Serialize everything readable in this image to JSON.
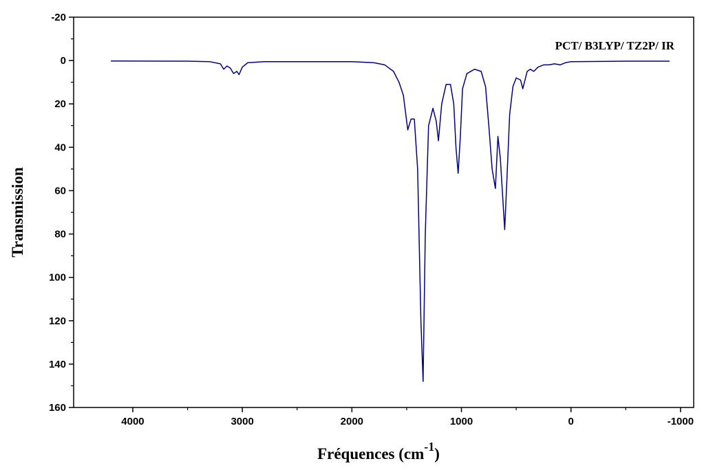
{
  "chart_data": {
    "type": "line",
    "annotation": "PCT/ B3LYP/ TZ2P/ IR",
    "x_label": "Fréquences (cm",
    "x_label_sup": "-1",
    "x_label_end": ")",
    "y_label": "Transmission",
    "xlim": [
      4540,
      -1120
    ],
    "ylim": [
      160,
      -20
    ],
    "xticks": [
      4000,
      3000,
      2000,
      1000,
      0,
      -1000
    ],
    "yticks": [
      -20,
      0,
      20,
      40,
      60,
      80,
      100,
      120,
      140,
      160
    ],
    "x": [
      4200,
      3500,
      3300,
      3200,
      3170,
      3140,
      3110,
      3080,
      3050,
      3030,
      3000,
      2950,
      2800,
      2000,
      1800,
      1700,
      1620,
      1570,
      1530,
      1490,
      1460,
      1430,
      1400,
      1370,
      1350,
      1330,
      1300,
      1260,
      1230,
      1210,
      1180,
      1140,
      1100,
      1070,
      1050,
      1030,
      1010,
      990,
      950,
      880,
      820,
      780,
      750,
      720,
      690,
      667,
      645,
      605,
      585,
      560,
      530,
      500,
      460,
      440,
      420,
      400,
      370,
      340,
      300,
      250,
      200,
      150,
      100,
      50,
      0,
      -500,
      -900
    ],
    "series": [
      {
        "name": "IR",
        "color": "#000080",
        "values": [
          0.2,
          0.3,
          0.5,
          1.5,
          4,
          2.5,
          3.5,
          6,
          5,
          6.5,
          3,
          1,
          0.5,
          0.5,
          1,
          2,
          5,
          10,
          16,
          32,
          27,
          27,
          50,
          120,
          148,
          80,
          30,
          22,
          28,
          37,
          20,
          11,
          11,
          20,
          40,
          52,
          35,
          13,
          6,
          4,
          5,
          12,
          30,
          50,
          59,
          35,
          45,
          78,
          55,
          25,
          12,
          8,
          9,
          13,
          9,
          5,
          4,
          5,
          3,
          2,
          2,
          1.5,
          2,
          1,
          0.5,
          0.3,
          0.3
        ]
      }
    ]
  }
}
